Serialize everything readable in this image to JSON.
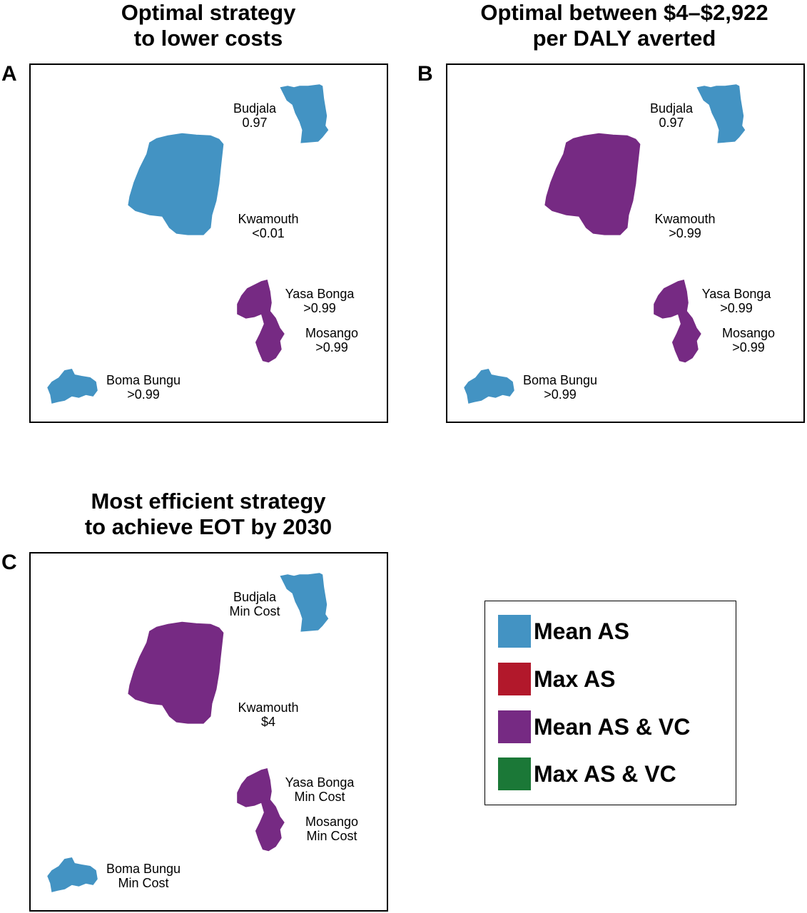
{
  "colors": {
    "mean_as": "#4393c3",
    "max_as": "#b2182b",
    "mean_as_vc": "#762a83",
    "max_as_vc": "#1b7837"
  },
  "panels": [
    {
      "letter": "A",
      "title_line1": "Optimal strategy",
      "title_line2": "to lower costs",
      "districts": [
        {
          "name": "Budjala",
          "value": "0.97",
          "strategy": "mean_as"
        },
        {
          "name": "Kwamouth",
          "value": "<0.01",
          "strategy": "mean_as"
        },
        {
          "name": "Yasa Bonga",
          "value": ">0.99",
          "strategy": "mean_as_vc"
        },
        {
          "name": "Mosango",
          "value": ">0.99",
          "strategy": "mean_as_vc"
        },
        {
          "name": "Boma Bungu",
          "value": ">0.99",
          "strategy": "mean_as"
        }
      ]
    },
    {
      "letter": "B",
      "title_line1": "Optimal between $4–$2,922",
      "title_line2": "per DALY averted",
      "districts": [
        {
          "name": "Budjala",
          "value": "0.97",
          "strategy": "mean_as"
        },
        {
          "name": "Kwamouth",
          "value": ">0.99",
          "strategy": "mean_as_vc"
        },
        {
          "name": "Yasa Bonga",
          "value": ">0.99",
          "strategy": "mean_as_vc"
        },
        {
          "name": "Mosango",
          "value": ">0.99",
          "strategy": "mean_as_vc"
        },
        {
          "name": "Boma Bungu",
          "value": ">0.99",
          "strategy": "mean_as"
        }
      ]
    },
    {
      "letter": "C",
      "title_line1": "Most efficient strategy",
      "title_line2": "to achieve EOT by 2030",
      "districts": [
        {
          "name": "Budjala",
          "value": "Min Cost",
          "strategy": "mean_as"
        },
        {
          "name": "Kwamouth",
          "value": "$4",
          "strategy": "mean_as_vc"
        },
        {
          "name": "Yasa Bonga",
          "value": "Min Cost",
          "strategy": "mean_as_vc"
        },
        {
          "name": "Mosango",
          "value": "Min Cost",
          "strategy": "mean_as_vc"
        },
        {
          "name": "Boma Bungu",
          "value": "Min Cost",
          "strategy": "mean_as"
        }
      ]
    }
  ],
  "legend": [
    {
      "label": "Mean AS",
      "strategy": "mean_as"
    },
    {
      "label": "Max AS",
      "strategy": "max_as"
    },
    {
      "label": "Mean AS & VC",
      "strategy": "mean_as_vc"
    },
    {
      "label": "Max AS & VC",
      "strategy": "max_as_vc"
    }
  ]
}
